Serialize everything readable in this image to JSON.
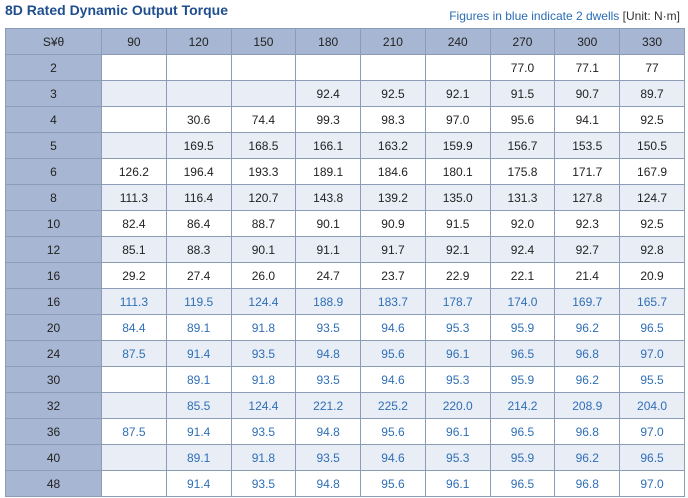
{
  "title": "8D Rated Dynamic Output Torque",
  "note_text": "Figures in blue indicate 2 dwells",
  "unit_text": "[Unit: N·m]",
  "corner_label": "S¥θ",
  "columns": [
    "90",
    "120",
    "150",
    "180",
    "210",
    "240",
    "270",
    "300",
    "330"
  ],
  "rows": [
    {
      "s": "2",
      "dwell": false,
      "values": [
        "",
        "",
        "",
        "",
        "",
        "",
        "77.0",
        "77.1",
        "77"
      ]
    },
    {
      "s": "3",
      "dwell": false,
      "values": [
        "",
        "",
        "",
        "92.4",
        "92.5",
        "92.1",
        "91.5",
        "90.7",
        "89.7"
      ]
    },
    {
      "s": "4",
      "dwell": false,
      "values": [
        "",
        "30.6",
        "74.4",
        "99.3",
        "98.3",
        "97.0",
        "95.6",
        "94.1",
        "92.5"
      ]
    },
    {
      "s": "5",
      "dwell": false,
      "values": [
        "",
        "169.5",
        "168.5",
        "166.1",
        "163.2",
        "159.9",
        "156.7",
        "153.5",
        "150.5"
      ]
    },
    {
      "s": "6",
      "dwell": false,
      "values": [
        "126.2",
        "196.4",
        "193.3",
        "189.1",
        "184.6",
        "180.1",
        "175.8",
        "171.7",
        "167.9"
      ]
    },
    {
      "s": "8",
      "dwell": false,
      "values": [
        "111.3",
        "116.4",
        "120.7",
        "143.8",
        "139.2",
        "135.0",
        "131.3",
        "127.8",
        "124.7"
      ]
    },
    {
      "s": "10",
      "dwell": false,
      "values": [
        "82.4",
        "86.4",
        "88.7",
        "90.1",
        "90.9",
        "91.5",
        "92.0",
        "92.3",
        "92.5"
      ]
    },
    {
      "s": "12",
      "dwell": false,
      "values": [
        "85.1",
        "88.3",
        "90.1",
        "91.1",
        "91.7",
        "92.1",
        "92.4",
        "92.7",
        "92.8"
      ]
    },
    {
      "s": "16",
      "dwell": false,
      "values": [
        "29.2",
        "27.4",
        "26.0",
        "24.7",
        "23.7",
        "22.9",
        "22.1",
        "21.4",
        "20.9"
      ]
    },
    {
      "s": "16",
      "dwell": true,
      "values": [
        "111.3",
        "119.5",
        "124.4",
        "188.9",
        "183.7",
        "178.7",
        "174.0",
        "169.7",
        "165.7"
      ]
    },
    {
      "s": "20",
      "dwell": true,
      "values": [
        "84.4",
        "89.1",
        "91.8",
        "93.5",
        "94.6",
        "95.3",
        "95.9",
        "96.2",
        "96.5"
      ]
    },
    {
      "s": "24",
      "dwell": true,
      "values": [
        "87.5",
        "91.4",
        "93.5",
        "94.8",
        "95.6",
        "96.1",
        "96.5",
        "96.8",
        "97.0"
      ]
    },
    {
      "s": "30",
      "dwell": true,
      "values": [
        "",
        "89.1",
        "91.8",
        "93.5",
        "94.6",
        "95.3",
        "95.9",
        "96.2",
        "95.5"
      ]
    },
    {
      "s": "32",
      "dwell": true,
      "values": [
        "",
        "85.5",
        "124.4",
        "221.2",
        "225.2",
        "220.0",
        "214.2",
        "208.9",
        "204.0"
      ]
    },
    {
      "s": "36",
      "dwell": true,
      "values": [
        "87.5",
        "91.4",
        "93.5",
        "94.8",
        "95.6",
        "96.1",
        "96.5",
        "96.8",
        "97.0"
      ]
    },
    {
      "s": "40",
      "dwell": true,
      "values": [
        "",
        "89.1",
        "91.8",
        "93.5",
        "94.6",
        "95.3",
        "95.9",
        "96.2",
        "96.5"
      ]
    },
    {
      "s": "48",
      "dwell": true,
      "values": [
        "",
        "91.4",
        "93.5",
        "94.8",
        "95.6",
        "96.1",
        "96.5",
        "96.8",
        "97.0"
      ]
    }
  ],
  "colors": {
    "title": "#1f4e8f",
    "dwell_text": "#2f6fb6",
    "header_bg": "#a7b6d2",
    "stripe_bg": "#e8edf6"
  }
}
